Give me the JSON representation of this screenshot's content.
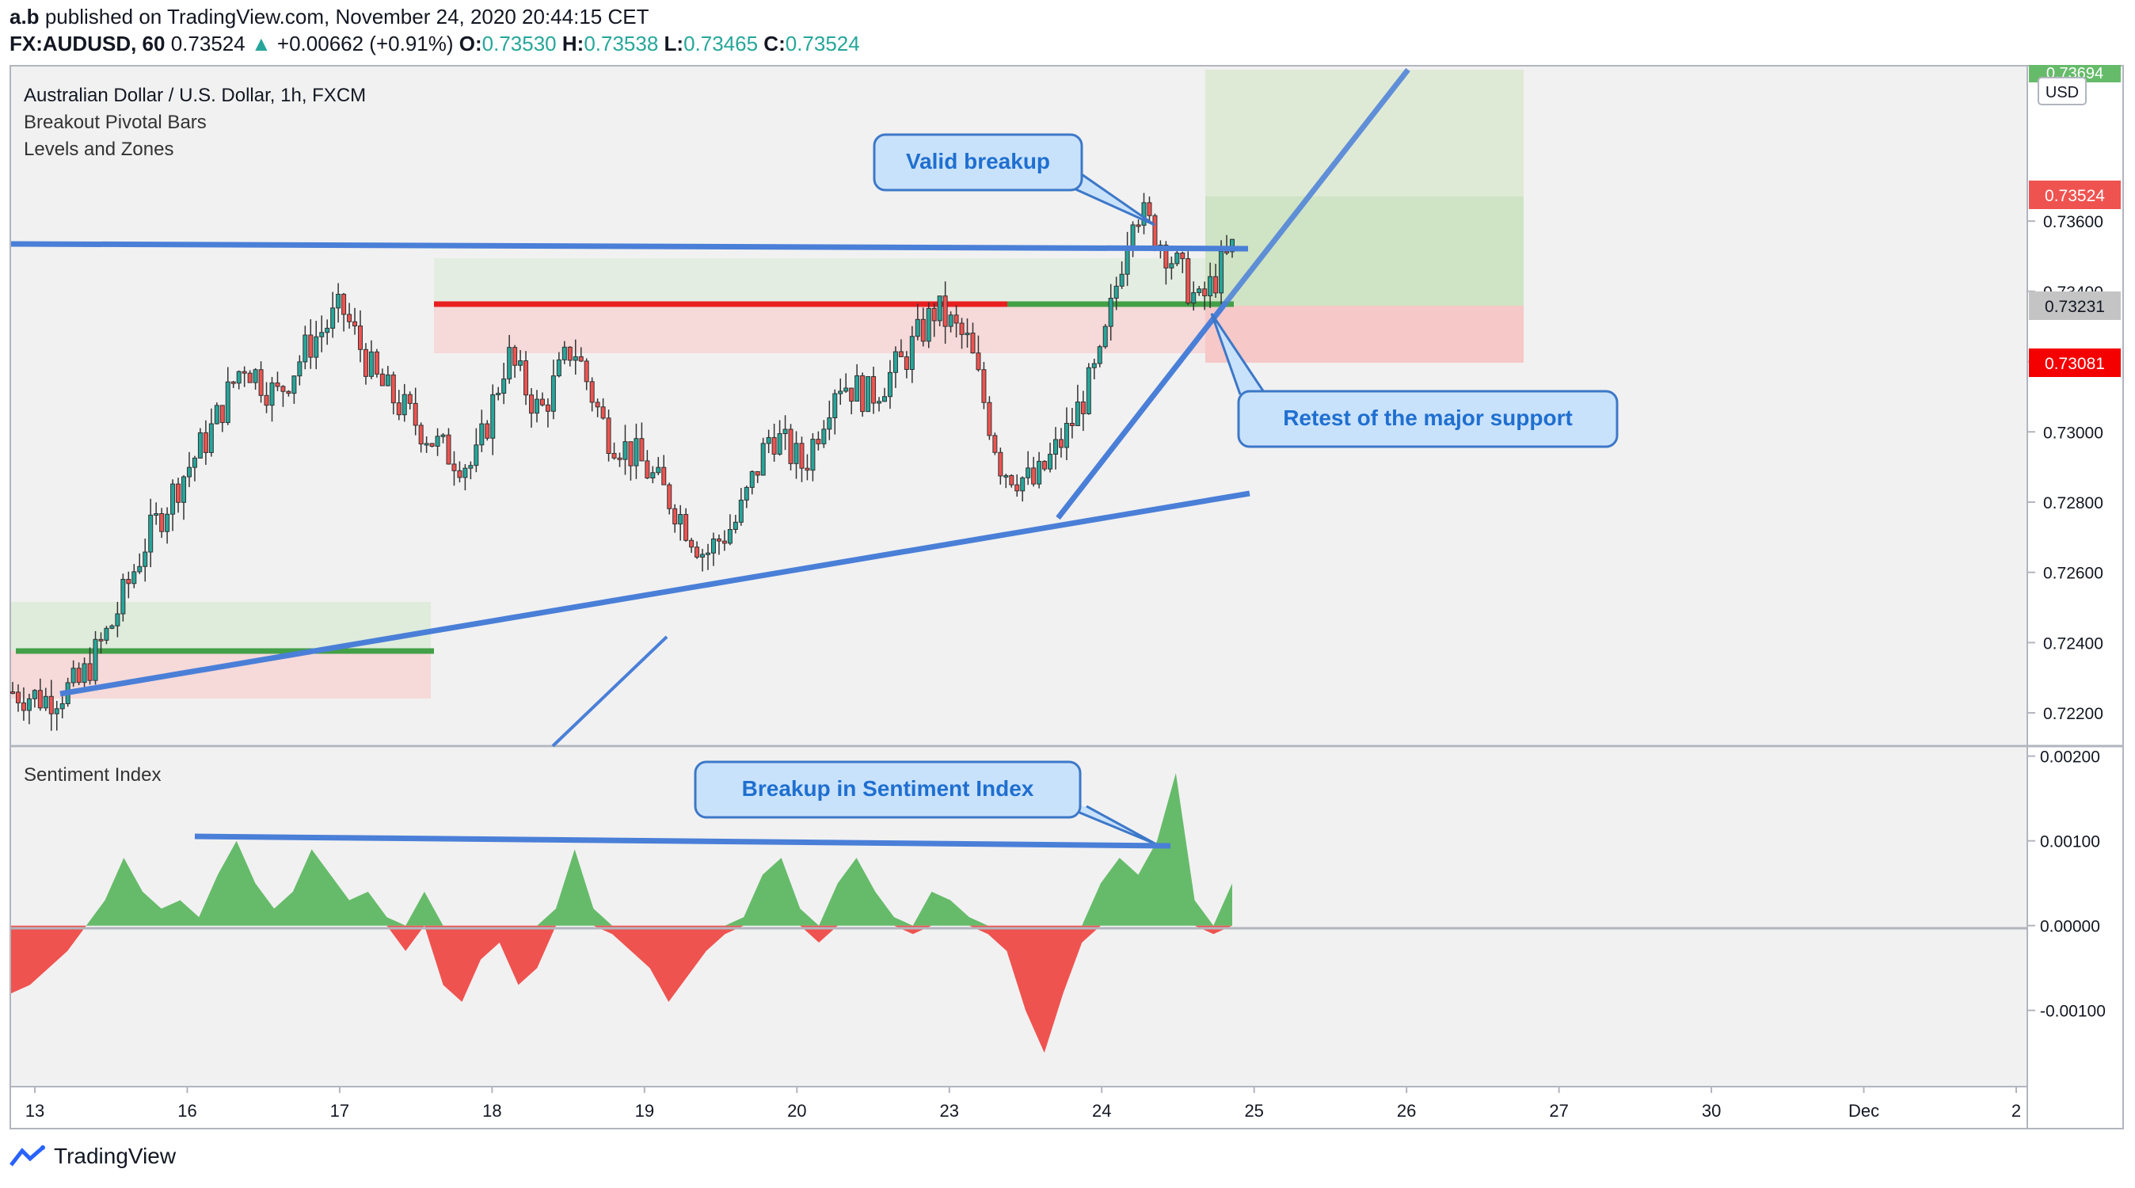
{
  "header": {
    "author": "a.b",
    "published": "published on TradingView.com, November 24, 2020 20:44:15 CET",
    "symbol": "FX:AUDUSD, 60",
    "last": "0.73524",
    "change": "+0.00662 (+0.91%)",
    "o_label": "O:",
    "o_val": "0.73530",
    "h_label": "H:",
    "h_val": "0.73538",
    "l_label": "L:",
    "l_val": "0.73465",
    "c_label": "C:",
    "c_val": "0.73524"
  },
  "legend": {
    "line1": "Australian Dollar / U.S. Dollar, 1h, FXCM",
    "line2": "Breakout Pivotal Bars",
    "line3": "Levels and Zones",
    "sentiment": "Sentiment Index",
    "currency_button": "USD"
  },
  "annotations": {
    "valid_breakup": "Valid breakup",
    "retest": "Retest of the major support",
    "breakup_sentiment": "Breakup in Sentiment Index"
  },
  "price_badges": {
    "top": "0.73694",
    "last": "0.73524",
    "level": "0.73231",
    "stop": "0.73081"
  },
  "footer": {
    "brand": "TradingView"
  },
  "colors": {
    "up": "#26a69a",
    "down": "#ef5350",
    "trendline": "#4a7fd8",
    "resistance": "#e81f1f",
    "support": "#43a047",
    "sentiment_pos": "#66bb6a",
    "sentiment_neg": "#ef5350"
  },
  "chart_data": [
    {
      "type": "candlestick",
      "title": "Australian Dollar / U.S. Dollar, 1h, FXCM",
      "y_ticks": [
        "0.73600",
        "0.73400",
        "0.73200",
        "0.73000",
        "0.72800",
        "0.72600",
        "0.72400",
        "0.72200"
      ],
      "x_ticks": [
        "13",
        "16",
        "17",
        "18",
        "19",
        "20",
        "23",
        "24",
        "25",
        "26",
        "27",
        "30",
        "Dec",
        "2"
      ],
      "ylim": [
        0.7211,
        0.7404
      ],
      "close_path": [
        [
          "13",
          0.7226
        ],
        [
          "13",
          0.7224
        ],
        [
          "13",
          0.7228
        ],
        [
          "16",
          0.7245
        ],
        [
          "16",
          0.7268
        ],
        [
          "16",
          0.7285
        ],
        [
          "16",
          0.73
        ],
        [
          "17",
          0.732
        ],
        [
          "17",
          0.731
        ],
        [
          "17",
          0.7325
        ],
        [
          "17",
          0.7335
        ],
        [
          "17",
          0.7315
        ],
        [
          "18",
          0.7305
        ],
        [
          "18",
          0.7295
        ],
        [
          "18",
          0.729
        ],
        [
          "18",
          0.7322
        ],
        [
          "18",
          0.7305
        ],
        [
          "19",
          0.7325
        ],
        [
          "19",
          0.73
        ],
        [
          "19",
          0.7292
        ],
        [
          "19",
          0.728
        ],
        [
          "20",
          0.7265
        ],
        [
          "20",
          0.7275
        ],
        [
          "20",
          0.73
        ],
        [
          "20",
          0.729
        ],
        [
          "20",
          0.7315
        ],
        [
          "23",
          0.731
        ],
        [
          "23",
          0.732
        ],
        [
          "23",
          0.7335
        ],
        [
          "23",
          0.7325
        ],
        [
          "23",
          0.729
        ],
        [
          "24",
          0.7285
        ],
        [
          "24",
          0.73
        ],
        [
          "24",
          0.732
        ],
        [
          "24",
          0.7365
        ],
        [
          "24",
          0.7352
        ],
        [
          "24",
          0.7336
        ],
        [
          "24",
          0.7352
        ]
      ],
      "levels": [
        {
          "name": "major resistance/support",
          "value": 0.7323
        },
        {
          "name": "lower support",
          "value": 0.72315
        }
      ],
      "trendlines": [
        "upper horizontal trendline",
        "rising support trendline",
        "steep rising trendline",
        "channel continuation line"
      ]
    },
    {
      "type": "area",
      "title": "Sentiment Index",
      "y_ticks": [
        "0.00200",
        "0.00100",
        "0.00000",
        "-0.00100"
      ],
      "ylim": [
        -0.0019,
        0.0021
      ],
      "values": [
        -0.0008,
        -0.0007,
        -0.0005,
        -0.0003,
        0.0,
        0.0003,
        0.0008,
        0.0004,
        0.0002,
        0.0003,
        0.0001,
        0.0006,
        0.001,
        0.0005,
        0.0002,
        0.0004,
        0.0009,
        0.0006,
        0.0003,
        0.0004,
        0.0001,
        -0.0003,
        0.0004,
        -0.0007,
        -0.0009,
        -0.0004,
        -0.0002,
        -0.0007,
        -0.0005,
        0.0002,
        0.0009,
        0.0002,
        -0.0001,
        -0.0003,
        -0.0005,
        -0.0009,
        -0.0006,
        -0.0003,
        -0.0001,
        0.0001,
        0.0006,
        0.0008,
        0.0002,
        -0.0002,
        0.0005,
        0.0008,
        0.0004,
        0.0001,
        -0.0001,
        0.0004,
        0.0003,
        0.0001,
        -0.0001,
        -0.0003,
        -0.001,
        -0.0015,
        -0.0008,
        -0.0002,
        0.0005,
        0.0008,
        0.0006,
        0.001,
        0.0018,
        0.0003,
        -0.0001,
        0.0005
      ]
    }
  ]
}
